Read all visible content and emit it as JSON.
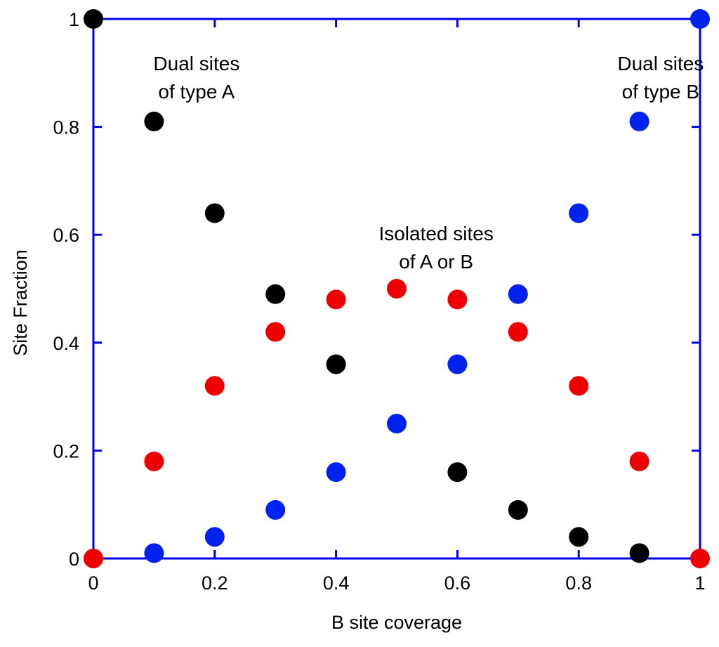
{
  "chart_data": {
    "type": "scatter",
    "xlabel": "B site coverage",
    "ylabel": "Site Fraction",
    "xlim": [
      0,
      1
    ],
    "ylim": [
      0,
      1
    ],
    "grid": false,
    "x_ticks": [
      "0",
      "0.2",
      "0.4",
      "0.6",
      "0.8",
      "1"
    ],
    "y_ticks": [
      "0",
      "0.2",
      "0.4",
      "0.6",
      "0.8",
      "1"
    ],
    "axis_color": "#0000ee",
    "series": [
      {
        "color": "#000000",
        "x": [
          0,
          0.1,
          0.2,
          0.3,
          0.4,
          0.6,
          0.7,
          0.8,
          0.9
        ],
        "y": [
          1,
          0.81,
          0.64,
          0.49,
          0.36,
          0.16,
          0.09,
          0.04,
          0.01
        ]
      },
      {
        "color": "#0022ee",
        "x": [
          0.1,
          0.2,
          0.3,
          0.4,
          0.5,
          0.6,
          0.7,
          0.8,
          0.9,
          1
        ],
        "y": [
          0.01,
          0.04,
          0.09,
          0.16,
          0.25,
          0.36,
          0.49,
          0.64,
          0.81,
          1
        ]
      },
      {
        "color": "#ee0000",
        "x": [
          0,
          0.1,
          0.2,
          0.3,
          0.4,
          0.5,
          0.6,
          0.7,
          0.8,
          0.9,
          1
        ],
        "y": [
          0,
          0.18,
          0.32,
          0.42,
          0.48,
          0.5,
          0.48,
          0.42,
          0.32,
          0.18,
          0
        ]
      }
    ],
    "annotations": [
      {
        "lines": [
          "Dual sites",
          "of type A"
        ],
        "x": 0.17,
        "y": 0.905
      },
      {
        "lines": [
          "Dual sites",
          "of type B"
        ],
        "x": 0.935,
        "y": 0.905
      },
      {
        "lines": [
          "Isolated sites",
          "of A or B"
        ],
        "x": 0.565,
        "y": 0.59
      }
    ]
  }
}
